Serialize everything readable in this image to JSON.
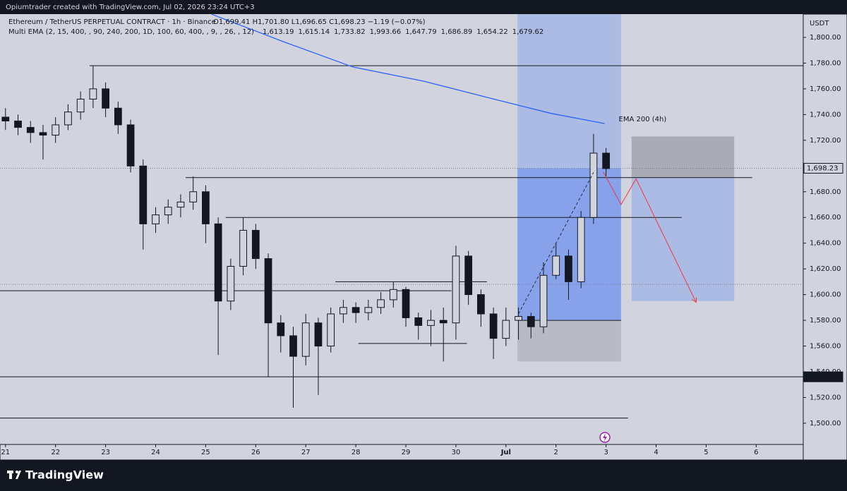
{
  "chart_data": {
    "type": "candlestick",
    "header": "Opiumtrader created with TradingView.com, Jul 02, 2026 23:24 UTC+3",
    "symbol": "Ethereum / TetherUS PERPETUAL CONTRACT · 1h · Binance",
    "ohlc_text": "O1,699.41  H1,701.80  L1,696.65  C1,698.23  −1.19 (−0.07%)",
    "indicator": "Multi EMA (2, 15, 400, , 90, 240, 200, 1D, 100, 60, 400, , 9, , 26, , 12)",
    "indicator_values": [
      "1,613.19",
      "1,615.14",
      "1,733.82",
      "1,993.66",
      "1,647.79",
      "1,686.89",
      "1,654.22",
      "1,679.62"
    ],
    "indicator_colors": [
      "#2962ff",
      "#2962ff",
      "#2962ff",
      "#089981",
      "#2962ff",
      "#2962ff",
      "#2962ff",
      "#2962ff"
    ],
    "currency": "USDT",
    "brand": "TradingView",
    "color": "#131722",
    "x": [
      0,
      0.25,
      0.5,
      0.75,
      1,
      1.25,
      1.5,
      1.75,
      2,
      2.25,
      2.5,
      2.75,
      3,
      3.25,
      3.5,
      3.75,
      4,
      4.25,
      4.5,
      4.75,
      5,
      5.25,
      5.5,
      5.75,
      6,
      6.25,
      6.5,
      6.75,
      7,
      7.25,
      7.5,
      7.75,
      8,
      8.25,
      8.5,
      8.75,
      9,
      9.25,
      9.5,
      9.75,
      10,
      10.25,
      10.5,
      10.75,
      11,
      11.25,
      11.5,
      11.75,
      12
    ],
    "open": [
      1738,
      1735,
      1730,
      1726,
      1724,
      1732,
      1742,
      1752,
      1760,
      1745,
      1732,
      1700,
      1655,
      1662,
      1668,
      1672,
      1680,
      1655,
      1595,
      1622,
      1650,
      1628,
      1578,
      1568,
      1552,
      1578,
      1560,
      1585,
      1590,
      1586,
      1590,
      1596,
      1604,
      1582,
      1576,
      1580,
      1578,
      1630,
      1600,
      1585,
      1566,
      1580,
      1583,
      1575,
      1615,
      1630,
      1610,
      1660,
      1710
    ],
    "high": [
      1745,
      1740,
      1735,
      1732,
      1738,
      1748,
      1758,
      1778,
      1765,
      1750,
      1736,
      1705,
      1668,
      1674,
      1678,
      1692,
      1685,
      1660,
      1628,
      1660,
      1655,
      1632,
      1584,
      1575,
      1585,
      1582,
      1590,
      1596,
      1594,
      1596,
      1602,
      1610,
      1606,
      1586,
      1588,
      1590,
      1638,
      1634,
      1604,
      1590,
      1590,
      1590,
      1586,
      1625,
      1640,
      1635,
      1665,
      1725,
      1714
    ],
    "low": [
      1728,
      1724,
      1718,
      1705,
      1718,
      1728,
      1736,
      1745,
      1738,
      1725,
      1695,
      1635,
      1648,
      1655,
      1660,
      1666,
      1640,
      1553,
      1588,
      1615,
      1620,
      1536,
      1555,
      1512,
      1545,
      1522,
      1555,
      1578,
      1578,
      1580,
      1585,
      1590,
      1575,
      1565,
      1560,
      1548,
      1565,
      1592,
      1575,
      1550,
      1560,
      1565,
      1566,
      1570,
      1612,
      1596,
      1605,
      1655,
      1692
    ],
    "close": [
      1735,
      1730,
      1726,
      1724,
      1732,
      1742,
      1752,
      1760,
      1745,
      1732,
      1700,
      1655,
      1662,
      1668,
      1672,
      1680,
      1655,
      1595,
      1622,
      1650,
      1628,
      1578,
      1568,
      1552,
      1578,
      1560,
      1585,
      1590,
      1586,
      1590,
      1596,
      1604,
      1582,
      1576,
      1580,
      1578,
      1630,
      1600,
      1585,
      1566,
      1580,
      1583,
      1575,
      1615,
      1630,
      1610,
      1660,
      1710,
      1698
    ],
    "ema": {
      "name": "EMA 200 (4h)",
      "color": "#2962ff",
      "x": [
        4.12,
        5.53,
        6.94,
        8.35,
        9.76,
        10.89,
        11.97
      ],
      "values": [
        1818,
        1797,
        1777,
        1766,
        1752,
        1741,
        1733
      ]
    },
    "xlim": [
      -0.11,
      15.94
    ],
    "ylim": [
      1483.5,
      1818.1
    ],
    "xticks": [
      {
        "value": 0,
        "label": "21"
      },
      {
        "value": 1,
        "label": "22"
      },
      {
        "value": 2,
        "label": "23"
      },
      {
        "value": 3,
        "label": "24"
      },
      {
        "value": 4,
        "label": "25"
      },
      {
        "value": 5,
        "label": "26"
      },
      {
        "value": 6,
        "label": "27"
      },
      {
        "value": 7,
        "label": "28"
      },
      {
        "value": 8,
        "label": "29"
      },
      {
        "value": 9,
        "label": "30"
      },
      {
        "value": 10,
        "label": "Jul"
      },
      {
        "value": 11,
        "label": "2"
      },
      {
        "value": 12,
        "label": "3"
      },
      {
        "value": 13,
        "label": "4"
      },
      {
        "value": 14,
        "label": "5"
      },
      {
        "value": 15,
        "label": "6"
      }
    ],
    "yticks": [
      {
        "value": 1500,
        "label": "1,500.00"
      },
      {
        "value": 1520,
        "label": "1,520.00"
      },
      {
        "value": 1540,
        "label": "1,540.00"
      },
      {
        "value": 1560,
        "label": "1,560.00"
      },
      {
        "value": 1580,
        "label": "1,580.00"
      },
      {
        "value": 1600,
        "label": "1,600.00"
      },
      {
        "value": 1620,
        "label": "1,620.00"
      },
      {
        "value": 1640,
        "label": "1,640.00"
      },
      {
        "value": 1660,
        "label": "1,660.00"
      },
      {
        "value": 1680,
        "label": "1,680.00"
      },
      {
        "value": 1700,
        "label": "1,700.00"
      },
      {
        "value": 1720,
        "label": "1,720.00"
      },
      {
        "value": 1740,
        "label": "1,740.00"
      },
      {
        "value": 1760,
        "label": "1,760.00"
      },
      {
        "value": 1780,
        "label": "1,780.00"
      },
      {
        "value": 1800,
        "label": "1,800.00"
      }
    ],
    "price_labels": [
      {
        "value": 1698.23,
        "label": "1,698.23"
      },
      {
        "value": 1536.09,
        "label": "1,536.09"
      }
    ],
    "dotted_levels": [
      1698.23,
      1608
    ],
    "levels": [
      {
        "price": 1778,
        "x": [
          1.68,
          15.94
        ]
      },
      {
        "price": 1691,
        "x": [
          3.6,
          14.92
        ]
      },
      {
        "price": 1660,
        "x": [
          4.4,
          13.51
        ]
      },
      {
        "price": 1610,
        "x": [
          6.59,
          9.62
        ]
      },
      {
        "price": 1603,
        "x": [
          -0.11,
          8.91
        ]
      },
      {
        "price": 1562,
        "x": [
          7.05,
          9.22
        ]
      },
      {
        "price": 1536.09,
        "x": [
          -0.11,
          15.94
        ]
      },
      {
        "price": 1504,
        "x": [
          -0.11,
          12.44
        ]
      },
      {
        "price": 1580,
        "x": [
          10.23,
          12.3
        ]
      }
    ],
    "boxes": [
      {
        "x": [
          10.23,
          12.3
        ],
        "y": [
          1580,
          1818.1
        ],
        "color": "rgba(41,98,255,0.22)"
      },
      {
        "x": [
          10.23,
          12.3
        ],
        "y": [
          1580,
          1698.23
        ],
        "color": "rgba(41,98,255,0.28)"
      },
      {
        "x": [
          10.23,
          12.3
        ],
        "y": [
          1548,
          1580
        ],
        "color": "rgba(120,123,134,0.28)"
      },
      {
        "x": [
          12.51,
          14.56
        ],
        "y": [
          1691,
          1723
        ],
        "color": "rgba(120,123,134,0.45)"
      },
      {
        "x": [
          12.51,
          14.56
        ],
        "y": [
          1595,
          1691
        ],
        "color": "rgba(41,98,255,0.22)"
      }
    ],
    "trend": {
      "x": [
        10.25,
        11.75
      ],
      "y": [
        1585,
        1695
      ]
    },
    "projection": {
      "color": "#f23645",
      "x": [
        11.95,
        12.3,
        12.6,
        13.8
      ],
      "y": [
        1695,
        1670,
        1690,
        1594
      ]
    }
  }
}
